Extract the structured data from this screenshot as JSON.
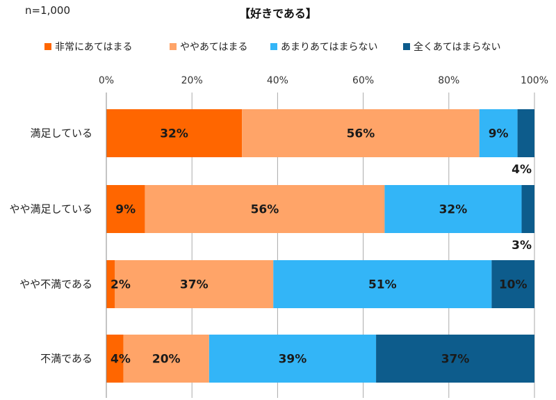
{
  "n_label": "n=1,000",
  "title": "【好きである】",
  "chart_data": {
    "type": "bar",
    "orientation": "horizontal",
    "stacked": true,
    "x_ticks": [
      "0%",
      "20%",
      "40%",
      "60%",
      "80%",
      "100%"
    ],
    "xlim": [
      0,
      100
    ],
    "categories": [
      "満足している",
      "やや満足している",
      "やや不満である",
      "不満である"
    ],
    "series": [
      {
        "name": "非常にあてはまる",
        "color": "#FF6600",
        "values": [
          32,
          9,
          2,
          4
        ],
        "labels": [
          "32%",
          "9%",
          "2%",
          "4%"
        ]
      },
      {
        "name": "ややあてはまる",
        "color": "#FFA468",
        "values": [
          56,
          56,
          37,
          20
        ],
        "labels": [
          "56%",
          "56%",
          "37%",
          "20%"
        ]
      },
      {
        "name": "あまりあてはまらない",
        "color": "#33B5F7",
        "values": [
          9,
          32,
          51,
          39
        ],
        "labels": [
          "9%",
          "32%",
          "51%",
          "39%"
        ]
      },
      {
        "name": "全くあてはまらない",
        "color": "#0D5C8C",
        "values": [
          4,
          3,
          10,
          37
        ],
        "labels": [
          "4%",
          "3%",
          "10%",
          "37%"
        ]
      }
    ],
    "legend_position": "top",
    "grid": true
  }
}
